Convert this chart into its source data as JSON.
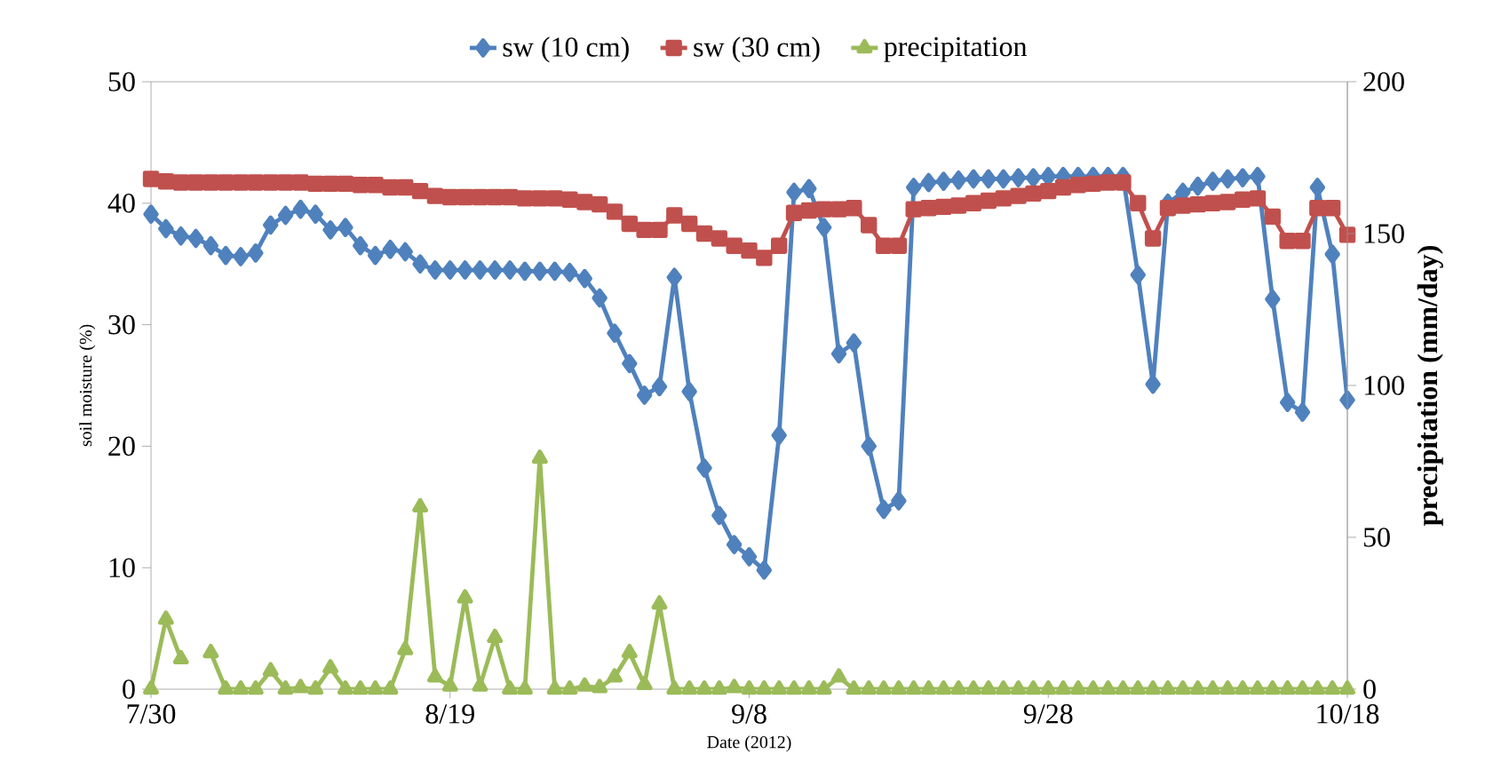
{
  "chart_data": {
    "type": "line",
    "xlabel": "Date (2012)",
    "ylabel": "soil moisture (%)",
    "y2label": "precipitation (mm/day)",
    "legend": "top",
    "line_style": "solid",
    "x": [
      "2012-07-30",
      "2012-07-31",
      "2012-08-01",
      "2012-08-02",
      "2012-08-03",
      "2012-08-04",
      "2012-08-05",
      "2012-08-06",
      "2012-08-07",
      "2012-08-08",
      "2012-08-09",
      "2012-08-10",
      "2012-08-11",
      "2012-08-12",
      "2012-08-13",
      "2012-08-14",
      "2012-08-15",
      "2012-08-16",
      "2012-08-17",
      "2012-08-18",
      "2012-08-19",
      "2012-08-20",
      "2012-08-21",
      "2012-08-22",
      "2012-08-23",
      "2012-08-24",
      "2012-08-25",
      "2012-08-26",
      "2012-08-27",
      "2012-08-28",
      "2012-08-29",
      "2012-08-30",
      "2012-08-31",
      "2012-09-01",
      "2012-09-02",
      "2012-09-03",
      "2012-09-04",
      "2012-09-05",
      "2012-09-06",
      "2012-09-07",
      "2012-09-08",
      "2012-09-09",
      "2012-09-10",
      "2012-09-11",
      "2012-09-12",
      "2012-09-13",
      "2012-09-14",
      "2012-09-15",
      "2012-09-16",
      "2012-09-17",
      "2012-09-18",
      "2012-09-19",
      "2012-09-20",
      "2012-09-21",
      "2012-09-22",
      "2012-09-23",
      "2012-09-24",
      "2012-09-25",
      "2012-09-26",
      "2012-09-27",
      "2012-09-28",
      "2012-09-29",
      "2012-09-30",
      "2012-10-01",
      "2012-10-02",
      "2012-10-03",
      "2012-10-04",
      "2012-10-05",
      "2012-10-06",
      "2012-10-07",
      "2012-10-08",
      "2012-10-09",
      "2012-10-10",
      "2012-10-11",
      "2012-10-12",
      "2012-10-13",
      "2012-10-14",
      "2012-10-15",
      "2012-10-16",
      "2012-10-17",
      "2012-10-18"
    ],
    "xlim": [
      "2012-07-30",
      "2012-10-18"
    ],
    "xticks": [
      {
        "value": "2012-07-30",
        "label": "7/30"
      },
      {
        "value": "2012-08-19",
        "label": "8/19"
      },
      {
        "value": "2012-09-08",
        "label": "9/8"
      },
      {
        "value": "2012-09-28",
        "label": "9/28"
      },
      {
        "value": "2012-10-18",
        "label": "10/18"
      }
    ],
    "ylim": [
      0,
      50
    ],
    "yticks": [
      0,
      10,
      20,
      30,
      40,
      50
    ],
    "y2lim": [
      0,
      200
    ],
    "y2ticks": [
      0,
      50,
      100,
      150,
      200
    ],
    "series": [
      {
        "name": "sw (10 cm)",
        "color": "#4f81bd",
        "marker": "diamond",
        "values": [
          39.1,
          37.9,
          37.3,
          37.1,
          36.5,
          35.7,
          35.6,
          35.9,
          38.2,
          39.0,
          39.5,
          39.1,
          37.8,
          38.0,
          36.5,
          35.7,
          36.2,
          36.0,
          35.0,
          34.5,
          34.5,
          34.5,
          34.5,
          34.5,
          34.5,
          34.4,
          34.4,
          34.4,
          34.3,
          33.8,
          32.2,
          29.3,
          26.8,
          24.2,
          24.9,
          33.9,
          24.5,
          18.2,
          14.3,
          11.9,
          10.9,
          9.8,
          20.9,
          40.9,
          41.2,
          38.0,
          27.6,
          28.5,
          20.0,
          14.8,
          15.5,
          41.3,
          41.7,
          41.8,
          41.9,
          42.0,
          42.0,
          42.0,
          42.1,
          42.1,
          42.2,
          42.2,
          42.2,
          42.2,
          42.2,
          42.2,
          34.1,
          25.1,
          40.0,
          40.9,
          41.4,
          41.8,
          42.0,
          42.1,
          42.2,
          32.1,
          23.6,
          22.8,
          41.3,
          35.8,
          23.8
        ]
      },
      {
        "name": "sw (30 cm)",
        "color": "#c0504d",
        "marker": "square",
        "values": [
          42.0,
          41.8,
          41.7,
          41.7,
          41.7,
          41.7,
          41.7,
          41.7,
          41.7,
          41.7,
          41.7,
          41.6,
          41.6,
          41.6,
          41.5,
          41.5,
          41.3,
          41.3,
          41.0,
          40.6,
          40.5,
          40.5,
          40.5,
          40.5,
          40.5,
          40.4,
          40.4,
          40.4,
          40.3,
          40.1,
          39.9,
          39.3,
          38.3,
          37.8,
          37.8,
          39.0,
          38.3,
          37.5,
          37.1,
          36.5,
          36.1,
          35.5,
          36.5,
          39.2,
          39.4,
          39.5,
          39.5,
          39.6,
          38.2,
          36.5,
          36.5,
          39.5,
          39.6,
          39.7,
          39.8,
          40.0,
          40.2,
          40.4,
          40.6,
          40.8,
          41.0,
          41.3,
          41.5,
          41.6,
          41.7,
          41.7,
          40.0,
          37.1,
          39.6,
          39.8,
          39.9,
          40.0,
          40.1,
          40.3,
          40.4,
          38.9,
          36.9,
          36.9,
          39.6,
          39.6,
          37.4
        ]
      },
      {
        "name": "precipitation",
        "color": "#9bbb59",
        "marker": "triangle",
        "axis": "y2",
        "values": [
          0,
          23,
          10,
          null,
          12,
          0,
          0,
          0,
          6,
          0,
          0.5,
          0,
          7,
          0,
          0,
          0,
          0,
          13,
          60,
          4,
          1,
          30,
          1,
          17,
          0,
          0,
          76,
          0,
          0,
          1,
          0.5,
          4,
          12,
          1.5,
          28,
          0,
          0,
          0,
          0,
          0.5,
          0,
          0,
          0,
          0,
          0,
          0,
          4,
          0,
          0,
          0,
          0,
          0,
          0,
          0,
          0,
          0,
          0,
          0,
          0,
          0,
          0,
          0,
          0,
          0,
          0,
          0,
          0,
          0,
          0,
          0,
          0,
          0,
          0,
          0,
          0,
          0,
          0,
          0,
          0,
          0,
          0
        ]
      }
    ]
  }
}
